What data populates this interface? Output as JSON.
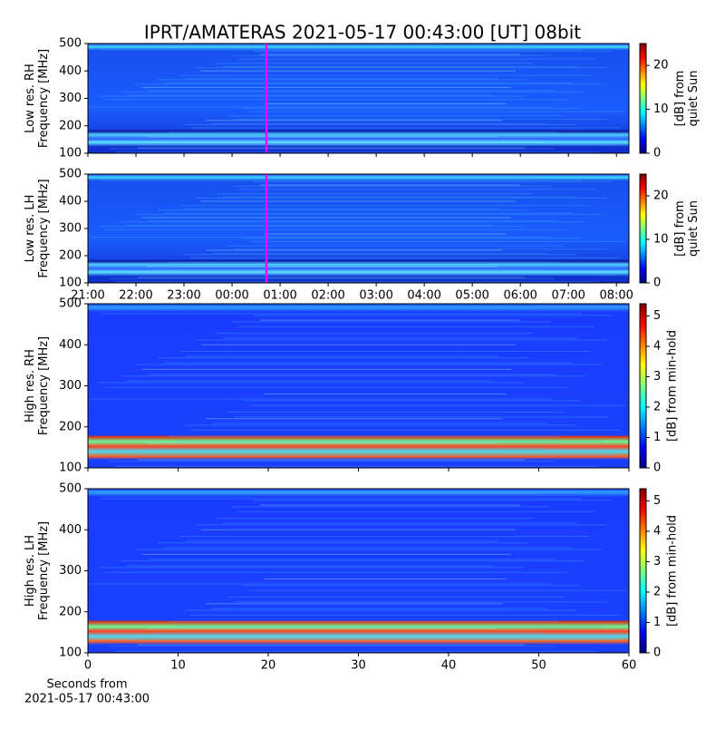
{
  "title": "IPRT/AMATERAS 2021-05-17 00:43:00 [UT]   08bit",
  "chart_data": [
    {
      "type": "heatmap",
      "ylabel": [
        "Low res. RH",
        "Frequency [MHz]"
      ],
      "ylim": [
        100,
        500
      ],
      "yticks": [
        100,
        200,
        300,
        400,
        500
      ],
      "xlim": [
        21,
        32.26
      ],
      "marker_x": 24.717,
      "marker_color": "#ff00ff",
      "colormap": "jet",
      "colorbar": {
        "label": [
          "[dB] from",
          "quiet Sun"
        ],
        "lim": [
          0,
          25
        ],
        "ticks": [
          0,
          10,
          20
        ]
      }
    },
    {
      "type": "heatmap",
      "ylabel": [
        "Low res. LH",
        "Frequency [MHz]"
      ],
      "ylim": [
        100,
        500
      ],
      "yticks": [
        100,
        200,
        300,
        400,
        500
      ],
      "xlim": [
        21,
        32.26
      ],
      "marker_x": 24.717,
      "marker_color": "#ff00ff",
      "colormap": "jet",
      "xticks": [
        {
          "value": 21,
          "label": "21:00"
        },
        {
          "value": 22,
          "label": "22:00"
        },
        {
          "value": 23,
          "label": "23:00"
        },
        {
          "value": 24,
          "label": "00:00"
        },
        {
          "value": 25,
          "label": "01:00"
        },
        {
          "value": 26,
          "label": "02:00"
        },
        {
          "value": 27,
          "label": "03:00"
        },
        {
          "value": 28,
          "label": "04:00"
        },
        {
          "value": 29,
          "label": "05:00"
        },
        {
          "value": 30,
          "label": "06:00"
        },
        {
          "value": 31,
          "label": "07:00"
        },
        {
          "value": 32,
          "label": "08:00"
        }
      ],
      "colorbar": {
        "label": [
          "[dB] from",
          "quiet Sun"
        ],
        "lim": [
          0,
          25
        ],
        "ticks": [
          0,
          10,
          20
        ]
      }
    },
    {
      "type": "heatmap",
      "ylabel": [
        "High res. RH",
        "Frequency [MHz]"
      ],
      "ylim": [
        100,
        500
      ],
      "yticks": [
        100,
        200,
        300,
        400,
        500
      ],
      "xlim": [
        0,
        60
      ],
      "colormap": "jet",
      "colorbar": {
        "label": [
          "[dB] from min-hold"
        ],
        "lim": [
          0,
          5.4
        ],
        "ticks": [
          0,
          1,
          2,
          3,
          4,
          5
        ]
      }
    },
    {
      "type": "heatmap",
      "ylabel": [
        "High res. LH",
        "Frequency [MHz]"
      ],
      "ylim": [
        100,
        500
      ],
      "yticks": [
        100,
        200,
        300,
        400,
        500
      ],
      "xlim": [
        0,
        60
      ],
      "xticks": [
        0,
        10,
        20,
        30,
        40,
        50,
        60
      ],
      "xlabel": [
        "Seconds from",
        "2021-05-17 00:43:00"
      ],
      "colormap": "jet",
      "colorbar": {
        "label": [
          "[dB] from min-hold"
        ],
        "lim": [
          0,
          5.4
        ],
        "ticks": [
          0,
          1,
          2,
          3,
          4,
          5
        ]
      }
    }
  ]
}
